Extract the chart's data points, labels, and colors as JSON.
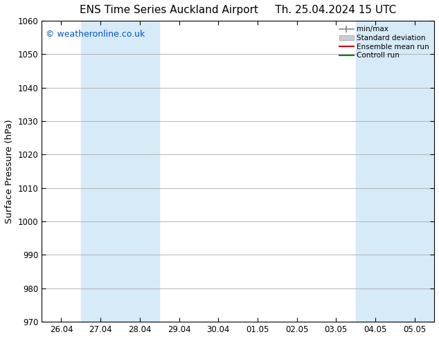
{
  "title_left": "ENS Time Series Auckland Airport",
  "title_right": "Th. 25.04.2024 15 UTC",
  "ylabel": "Surface Pressure (hPa)",
  "ylim": [
    970,
    1060
  ],
  "yticks": [
    970,
    980,
    990,
    1000,
    1010,
    1020,
    1030,
    1040,
    1050,
    1060
  ],
  "xtick_labels": [
    "26.04",
    "27.04",
    "28.04",
    "29.04",
    "30.04",
    "01.05",
    "02.05",
    "03.05",
    "04.05",
    "05.05"
  ],
  "shaded_bands": [
    {
      "x_start": "2024-04-27",
      "x_end": "2024-04-29",
      "color": "#d6eaf8"
    },
    {
      "x_start": "2024-04-27T00",
      "x_end": "2024-04-27T12",
      "color": "#d6eaf8"
    },
    {
      "x_start": "2024-05-04",
      "x_end": "2024-05-06T12",
      "color": "#d6eaf8"
    }
  ],
  "bg_color": "#ffffff",
  "plot_bg_color": "#ffffff",
  "watermark": "© weatheronline.co.uk",
  "watermark_color": "#0055cc",
  "grid_color": "#aaaaaa",
  "tick_label_fontsize": 8.5,
  "axis_label_fontsize": 9.5,
  "title_fontsize": 11
}
